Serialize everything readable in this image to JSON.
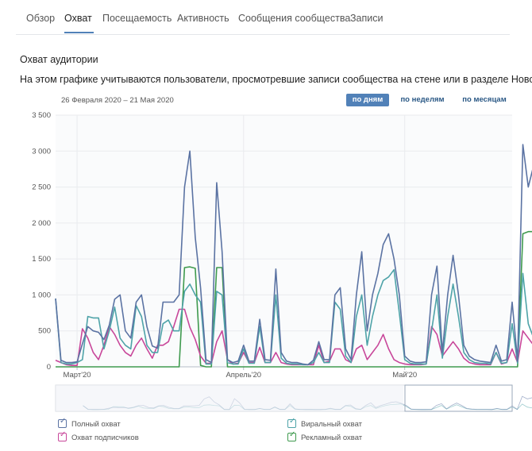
{
  "tabs": [
    {
      "label": "Обзор",
      "active": false
    },
    {
      "label": "Охват",
      "active": true
    },
    {
      "label": "Посещаемость",
      "active": false
    },
    {
      "label": "Активность",
      "active": false
    },
    {
      "label": "Сообщения сообщества",
      "active": false
    },
    {
      "label": "Записи",
      "active": false
    }
  ],
  "section": {
    "title": "Охват аудитории",
    "description": "На этом графике учитываются пользователи, просмотревшие записи сообщества на стене или в разделе Новости."
  },
  "date_range": "26 Февраля 2020 – 21 Мая 2020",
  "period_buttons": [
    {
      "label": "по дням",
      "active": true
    },
    {
      "label": "по неделям",
      "active": false
    },
    {
      "label": "по месяцам",
      "active": false
    }
  ],
  "legend": [
    {
      "label": "Полный охват",
      "color": "#5b73a3",
      "checked": true
    },
    {
      "label": "Охват подписчиков",
      "color": "#c8479a",
      "checked": true
    },
    {
      "label": "Виральный охват",
      "color": "#4ea3a8",
      "checked": true
    },
    {
      "label": "Рекламный охват",
      "color": "#3f9a4e",
      "checked": true
    }
  ],
  "colors": {
    "accent": "#5181b8",
    "grid": "#e9ebee",
    "total": "#5b73a3",
    "subscribers": "#c8479a",
    "viral": "#4ea3a8",
    "ads": "#3f9a4e"
  },
  "chart_data": {
    "type": "line",
    "x_start": "2020-02-26",
    "x_end": "2020-05-21",
    "x_ticks": [
      {
        "label": "Март'20",
        "date": "2020-03-01"
      },
      {
        "label": "Апрель'20",
        "date": "2020-04-01"
      },
      {
        "label": "Май'20",
        "date": "2020-05-01"
      }
    ],
    "y_ticks": [
      "0",
      "500",
      "1 000",
      "1 500",
      "2 000",
      "2 500",
      "3 000",
      "3 500"
    ],
    "ylim": [
      0,
      3500
    ],
    "grid": true,
    "legend_position": "bottom",
    "series": [
      {
        "name": "Полный охват",
        "color": "#5b73a3",
        "values": [
          950,
          90,
          60,
          60,
          70,
          320,
          560,
          500,
          480,
          380,
          580,
          940,
          1000,
          500,
          400,
          900,
          1000,
          560,
          290,
          260,
          900,
          900,
          900,
          1000,
          2500,
          3000,
          1800,
          1100,
          100,
          60,
          2560,
          1600,
          100,
          60,
          80,
          300,
          80,
          80,
          660,
          100,
          90,
          1360,
          200,
          80,
          60,
          60,
          40,
          30,
          90,
          350,
          100,
          100,
          1000,
          1100,
          250,
          100,
          1000,
          1600,
          500,
          1000,
          1300,
          1700,
          1850,
          1500,
          1000,
          150,
          80,
          60,
          60,
          70,
          1000,
          1400,
          200,
          1000,
          1550,
          1000,
          300,
          150,
          100,
          80,
          70,
          60,
          300,
          80,
          100,
          900,
          80,
          3090,
          2500,
          2800,
          2300,
          1800
        ]
      },
      {
        "name": "Охват подписчиков",
        "color": "#c8479a",
        "values": [
          90,
          60,
          30,
          20,
          20,
          530,
          400,
          200,
          100,
          300,
          560,
          450,
          300,
          200,
          150,
          300,
          400,
          250,
          120,
          300,
          300,
          350,
          560,
          800,
          800,
          550,
          380,
          150,
          50,
          50,
          350,
          500,
          100,
          40,
          50,
          200,
          60,
          60,
          270,
          60,
          60,
          200,
          60,
          40,
          30,
          30,
          30,
          30,
          30,
          300,
          60,
          80,
          250,
          250,
          100,
          60,
          250,
          300,
          100,
          200,
          300,
          450,
          250,
          100,
          60,
          40,
          30,
          30,
          30,
          40,
          560,
          450,
          150,
          250,
          350,
          250,
          120,
          60,
          40,
          30,
          30,
          30,
          200,
          40,
          60,
          250,
          60,
          500,
          400,
          300,
          200,
          80
        ]
      },
      {
        "name": "Виральный охват",
        "color": "#4ea3a8",
        "values": [
          950,
          60,
          40,
          40,
          60,
          100,
          700,
          680,
          680,
          250,
          500,
          830,
          400,
          300,
          250,
          850,
          700,
          300,
          200,
          200,
          600,
          650,
          500,
          500,
          1050,
          1150,
          1000,
          900,
          40,
          40,
          1050,
          1000,
          60,
          40,
          40,
          250,
          50,
          50,
          560,
          60,
          60,
          1000,
          120,
          50,
          40,
          40,
          30,
          30,
          60,
          200,
          60,
          60,
          900,
          800,
          150,
          60,
          700,
          1000,
          300,
          700,
          1000,
          1200,
          1250,
          1350,
          750,
          100,
          50,
          40,
          40,
          40,
          500,
          1000,
          120,
          700,
          1150,
          700,
          200,
          100,
          60,
          50,
          50,
          40,
          200,
          50,
          60,
          600,
          50,
          1300,
          600,
          400,
          800,
          200
        ]
      },
      {
        "name": "Рекламный охват",
        "color": "#3f9a4e",
        "values": [
          0,
          0,
          0,
          0,
          0,
          0,
          0,
          0,
          0,
          0,
          0,
          0,
          0,
          0,
          0,
          0,
          0,
          0,
          0,
          0,
          0,
          0,
          0,
          0,
          1380,
          1390,
          1370,
          20,
          0,
          0,
          1380,
          1380,
          0,
          0,
          0,
          0,
          0,
          0,
          0,
          0,
          0,
          0,
          0,
          0,
          0,
          0,
          0,
          0,
          0,
          0,
          0,
          0,
          0,
          0,
          0,
          0,
          0,
          0,
          0,
          0,
          0,
          0,
          0,
          0,
          0,
          0,
          0,
          0,
          0,
          0,
          0,
          0,
          0,
          0,
          0,
          0,
          0,
          0,
          0,
          0,
          0,
          0,
          0,
          0,
          0,
          0,
          0,
          1850,
          1880,
          1880,
          1850,
          1550
        ]
      }
    ]
  }
}
